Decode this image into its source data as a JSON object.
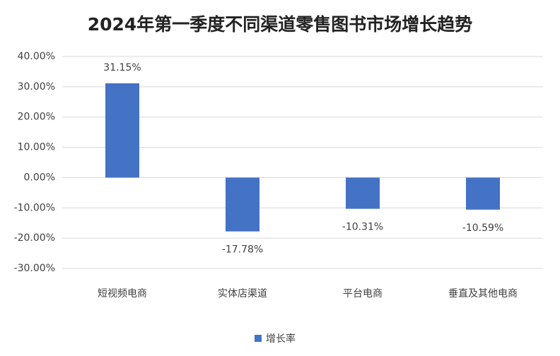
{
  "chart_data": {
    "type": "bar",
    "title": "2024年第一季度不同渠道零售图书市场增长趋势",
    "categories": [
      "短视频电商",
      "实体店渠道",
      "平台电商",
      "垂直及其他电商"
    ],
    "series": [
      {
        "name": "增长率",
        "color": "#4472c4",
        "values": [
          31.15,
          -17.78,
          -10.31,
          -10.59
        ],
        "value_labels": [
          "31.15%",
          "-17.78%",
          "-10.31%",
          "-10.59%"
        ]
      }
    ],
    "ylim": [
      -30,
      40
    ],
    "yticks": [
      {
        "value": -30,
        "label": "-30.00%"
      },
      {
        "value": -20,
        "label": "-20.00%"
      },
      {
        "value": -10,
        "label": "-10.00%"
      },
      {
        "value": 0,
        "label": "0.00%"
      },
      {
        "value": 10,
        "label": "10.00%"
      },
      {
        "value": 20,
        "label": "20.00%"
      },
      {
        "value": 30,
        "label": "30.00%"
      },
      {
        "value": 40,
        "label": "40.00%"
      }
    ],
    "grid": true,
    "legend": "bottom"
  }
}
